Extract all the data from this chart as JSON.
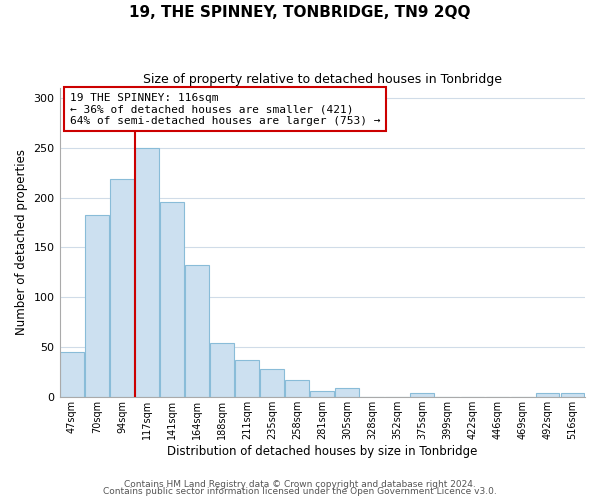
{
  "title": "19, THE SPINNEY, TONBRIDGE, TN9 2QQ",
  "subtitle": "Size of property relative to detached houses in Tonbridge",
  "xlabel": "Distribution of detached houses by size in Tonbridge",
  "ylabel": "Number of detached properties",
  "footnote1": "Contains HM Land Registry data © Crown copyright and database right 2024.",
  "footnote2": "Contains public sector information licensed under the Open Government Licence v3.0.",
  "bar_labels": [
    "47sqm",
    "70sqm",
    "94sqm",
    "117sqm",
    "141sqm",
    "164sqm",
    "188sqm",
    "211sqm",
    "235sqm",
    "258sqm",
    "281sqm",
    "305sqm",
    "328sqm",
    "352sqm",
    "375sqm",
    "399sqm",
    "422sqm",
    "446sqm",
    "469sqm",
    "492sqm",
    "516sqm"
  ],
  "bar_values": [
    45,
    183,
    219,
    250,
    196,
    132,
    54,
    37,
    28,
    17,
    6,
    9,
    0,
    0,
    4,
    0,
    0,
    0,
    0,
    4,
    4
  ],
  "bar_color": "#cce0f0",
  "bar_edge_color": "#89bcd8",
  "highlight_bar_index": 3,
  "vline_color": "#cc0000",
  "annotation_title": "19 THE SPINNEY: 116sqm",
  "annotation_line1": "← 36% of detached houses are smaller (421)",
  "annotation_line2": "64% of semi-detached houses are larger (753) →",
  "annotation_box_edge": "#cc0000",
  "ylim": [
    0,
    310
  ],
  "yticks": [
    0,
    50,
    100,
    150,
    200,
    250,
    300
  ],
  "background_color": "#ffffff",
  "grid_color": "#d0dce8"
}
